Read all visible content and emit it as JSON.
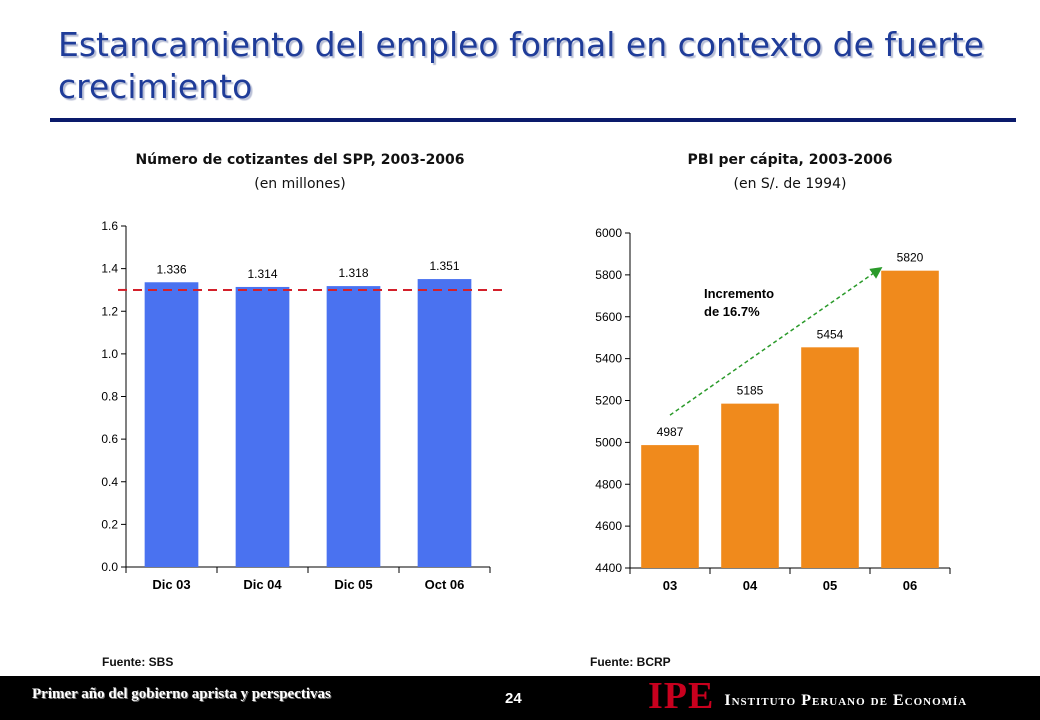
{
  "slide": {
    "title": "Estancamiento del empleo formal en contexto de fuerte crecimiento"
  },
  "chart_data": [
    {
      "type": "bar",
      "title": "Número de cotizantes del SPP, 2003-2006",
      "subtitle": "(en millones)",
      "categories": [
        "Dic 03",
        "Dic 04",
        "Dic 05",
        "Oct 06"
      ],
      "values": [
        1.336,
        1.314,
        1.318,
        1.351
      ],
      "value_labels": [
        "1.336",
        "1.314",
        "1.318",
        "1.351"
      ],
      "ylim": [
        0.0,
        1.6
      ],
      "yticks": [
        0.0,
        0.2,
        0.4,
        0.6,
        0.8,
        1.0,
        1.2,
        1.4,
        1.6
      ],
      "ytick_labels": [
        "0.0",
        "0.2",
        "0.4",
        "0.6",
        "0.8",
        "1.0",
        "1.2",
        "1.4",
        "1.6"
      ],
      "reference_line": 1.3,
      "bar_color": "#4a72f0",
      "reference_color": "#d3202a",
      "source": "Fuente: SBS"
    },
    {
      "type": "bar",
      "title": "PBI per cápita, 2003-2006",
      "subtitle": "(en S/. de 1994)",
      "categories": [
        "03",
        "04",
        "05",
        "06"
      ],
      "values": [
        4987,
        5185,
        5454,
        5820
      ],
      "value_labels": [
        "4987",
        "5185",
        "5454",
        "5820"
      ],
      "ylim": [
        4400,
        6000
      ],
      "yticks": [
        4400,
        4600,
        4800,
        5000,
        5200,
        5400,
        5600,
        5800,
        6000
      ],
      "ytick_labels": [
        "4400",
        "4600",
        "4800",
        "5000",
        "5200",
        "5400",
        "5600",
        "5800",
        "6000"
      ],
      "bar_color": "#f08a1c",
      "annotation": {
        "line1": "Incremento",
        "line2": "de 16.7%"
      },
      "trend_color": "#2a9a2a",
      "source": "Fuente: BCRP"
    }
  ],
  "footer": {
    "left_text": "Primer año del gobierno aprista y perspectivas",
    "page_number": "24",
    "logo_mark": "IPE",
    "logo_name": "Instituto Peruano de Economía"
  }
}
